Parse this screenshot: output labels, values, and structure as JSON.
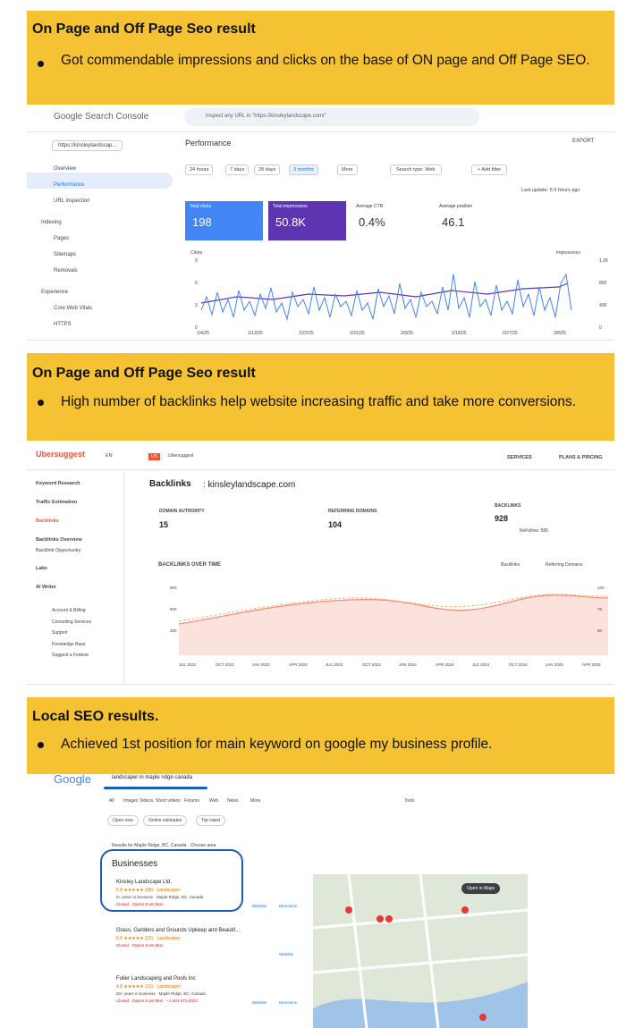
{
  "sections": [
    {
      "heading": "On Page and Off Page Seo result",
      "bullet": "Got commendable impressions and clicks on the base of ON page and Off Page SEO."
    },
    {
      "heading": "On Page and Off Page Seo result",
      "bullet": "High number of backlinks help website increasing traffic and take more conversions."
    },
    {
      "heading": "Local SEO results.",
      "bullet": "Achieved 1st position for main keyword on google my business profile."
    }
  ],
  "search_console": {
    "brand": "Google Search Console",
    "search_placeholder": "Inspect any URL in \"https://kinsleylandscape.com/\"",
    "property": "https://kinsleylandscap...",
    "page_title": "Performance",
    "export": "EXPORT",
    "nav": [
      "Overview",
      "Performance",
      "URL inspection",
      "Indexing",
      "Pages",
      "Sitemaps",
      "Removals",
      "Experience",
      "Core Web Vitals",
      "HTTPS"
    ],
    "date_filters": [
      "24 hours",
      "7 days",
      "28 days",
      "3 months",
      "More"
    ],
    "search_type": "Search type: Web",
    "add_filter": "+ Add filter",
    "last_update": "Last update: 5.5 hours ago",
    "metrics": [
      {
        "label": "Total clicks",
        "value": "198"
      },
      {
        "label": "Total impressions",
        "value": "50.8K"
      },
      {
        "label": "Average CTR",
        "value": "0.4%"
      },
      {
        "label": "Average position",
        "value": "46.1"
      }
    ],
    "chart": {
      "left_axis": "Clicks",
      "right_axis": "Impressions",
      "left_ticks": [
        "9",
        "6",
        "3",
        "0"
      ],
      "right_ticks": [
        "1.2K",
        "800",
        "400",
        "0"
      ],
      "dates": [
        "1/4/25",
        "1/13/25",
        "1/22/25",
        "1/31/25",
        "2/9/25",
        "2/18/25",
        "2/27/25",
        "3/8/25"
      ]
    }
  },
  "ubersuggest": {
    "brand": "Ubersuggest",
    "language": "EN",
    "project_badge": "US",
    "project": "Ubersuggest",
    "top_links": [
      "SERVICES",
      "PLANS & PRICING"
    ],
    "sidebar": [
      "Keyword Research",
      "Traffic Estimation",
      "Backlinks",
      "Backlinks Overview",
      "Backlink Opportunity",
      "Labs",
      "AI Writer"
    ],
    "sidebar_footer": [
      "Account & Billing",
      "Consulting Services",
      "Support",
      "Knowledge Base",
      "Suggest a Feature"
    ],
    "page_title": "Backlinks",
    "domain": ": kinsleylandscape.com",
    "stats": [
      {
        "label": "DOMAIN AUTHORITY",
        "value": "15"
      },
      {
        "label": "REFERRING DOMAINS",
        "value": "104"
      },
      {
        "label": "BACKLINKS",
        "value": "928"
      }
    ],
    "nofollow": "NoFollow: 580",
    "chart": {
      "title": "BACKLINKS OVER TIME",
      "legend": [
        "Backlinks",
        "Referring Domains"
      ],
      "left_ticks": [
        "900",
        "600",
        "300"
      ],
      "right_ticks": [
        "100",
        "75",
        "50"
      ],
      "dates": [
        "JUL 2022",
        "OCT 2022",
        "JAN 2023",
        "APR 2023",
        "JUL 2023",
        "OCT 2023",
        "JAN 2024",
        "APR 2024",
        "JUL 2024",
        "OCT 2024",
        "JAN 2025",
        "APR 2025"
      ]
    }
  },
  "google": {
    "logo": "Google",
    "query": "landscaper in maple ridge canada",
    "tabs": [
      "All",
      "Images",
      "Videos",
      "Short videos",
      "Forums",
      "Web",
      "News",
      "More"
    ],
    "tools": "Tools",
    "chips": [
      "Open now",
      "Online estimates",
      "Top rated"
    ],
    "results_for": "Results for Maple Ridge, BC, Canada · Choose area",
    "businesses": "Businesses",
    "listings": [
      {
        "name": "Kinsley Landscape Ltd.",
        "rating": "5.0 ★★★★★ (38) · Landscaper",
        "lines": [
          "5+ years in business · Maple Ridge, BC, Canada",
          "Closed · Opens 9 am Mon"
        ],
        "actions": [
          "Website",
          "Directions"
        ]
      },
      {
        "name": "Grass, Gardens and Grounds Upkeep and Beautif...",
        "rating": "5.0 ★★★★★ (22) · Landscaper",
        "lines": [
          "Closed · Opens 9 am Mon"
        ],
        "actions": [
          "Website"
        ]
      },
      {
        "name": "Fuller Landscaping and Pools Inc",
        "rating": "4.8 ★★★★★ (23) · Landscaper",
        "lines": [
          "20+ years in business · Maple Ridge, BC, Canada",
          "Closed · Opens 9 am Mon · +1 604-671-0323"
        ],
        "actions": [
          "Website",
          "Directions"
        ]
      }
    ],
    "map_button": "Open in Maps"
  }
}
